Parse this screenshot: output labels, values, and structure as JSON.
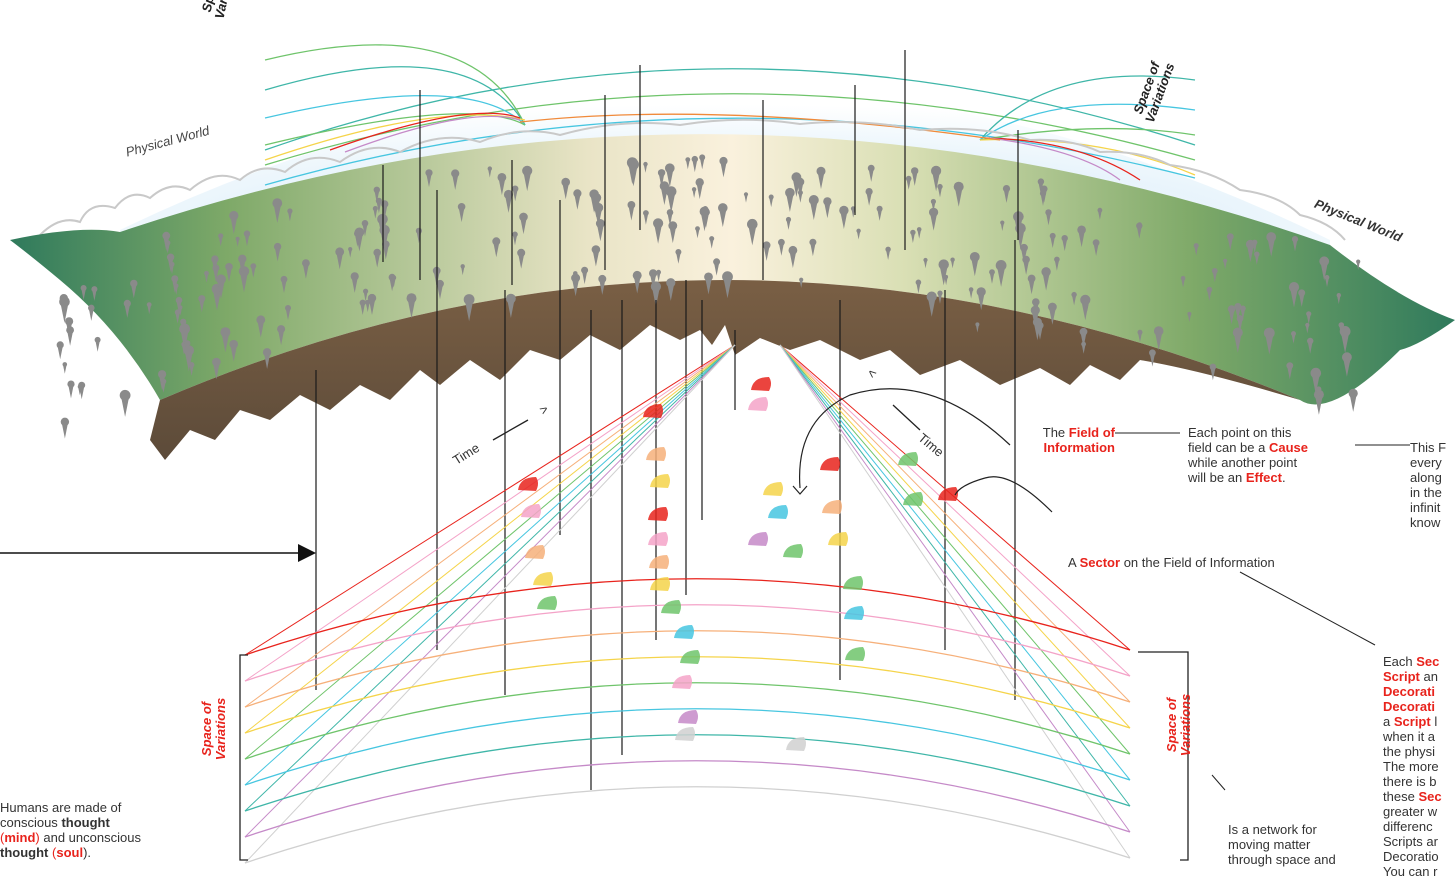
{
  "labels": {
    "physical_world_left": "Physical World",
    "physical_world_right": "Physical World",
    "space_of": "Space of",
    "variations": "Variations",
    "time": "Time",
    "time_arrow": ">",
    "the": "The",
    "field_of_information": "Field of Information",
    "a": "A",
    "sector": "Sector",
    "sector_suffix": "on the Field of Information"
  },
  "cause_effect": {
    "line1": "Each point on this",
    "line2a": "field can be a",
    "cause": "Cause",
    "line3": "while another point",
    "line4a": "will be an",
    "effect": "Effect",
    "line4b": "."
  },
  "right_text": {
    "line1": "This F",
    "line2": "every",
    "line3": "along",
    "line4": "in the",
    "line5": "infinit",
    "line6": "know"
  },
  "sector_text": {
    "each": "Each",
    "sec": "Sec",
    "script": "Script",
    "an": "an",
    "decorati1": "Decorati",
    "decorati2": "Decorati",
    "a": "a",
    "script2": "Script",
    "l": "l",
    "when": "when it a",
    "physi": "the physi",
    "more": "The more",
    "b": "there is b",
    "these": "these",
    "sec2": "Sec",
    "greater": "greater w",
    "differenc": "differenc",
    "scripts": "Scripts ar",
    "decoratio": "Decoratio",
    "you": "You can r"
  },
  "humans": {
    "line1": "Humans are made of",
    "line2a": "conscious",
    "thought": "thought",
    "open1": "(",
    "mind": "mind",
    "close1": ")",
    "and": "and unconscious",
    "thought2": "thought",
    "open2": "(",
    "soul": "soul",
    "close2": ").",
    "paren_open": "("
  },
  "network": {
    "line1": "Is a network for",
    "line2": "moving matter",
    "line3": "through space and"
  },
  "colors": {
    "red": "#e8231c",
    "ground_green": "#8cb06a",
    "soil": "#6b5033",
    "sky": "#dff0fb",
    "variations": [
      "#e8231c",
      "#f4a3c8",
      "#f6b07a",
      "#f5d44a",
      "#6fc46b",
      "#47c6e0",
      "#3fb6a8",
      "#c58ac8",
      "#d0d0d0"
    ]
  }
}
